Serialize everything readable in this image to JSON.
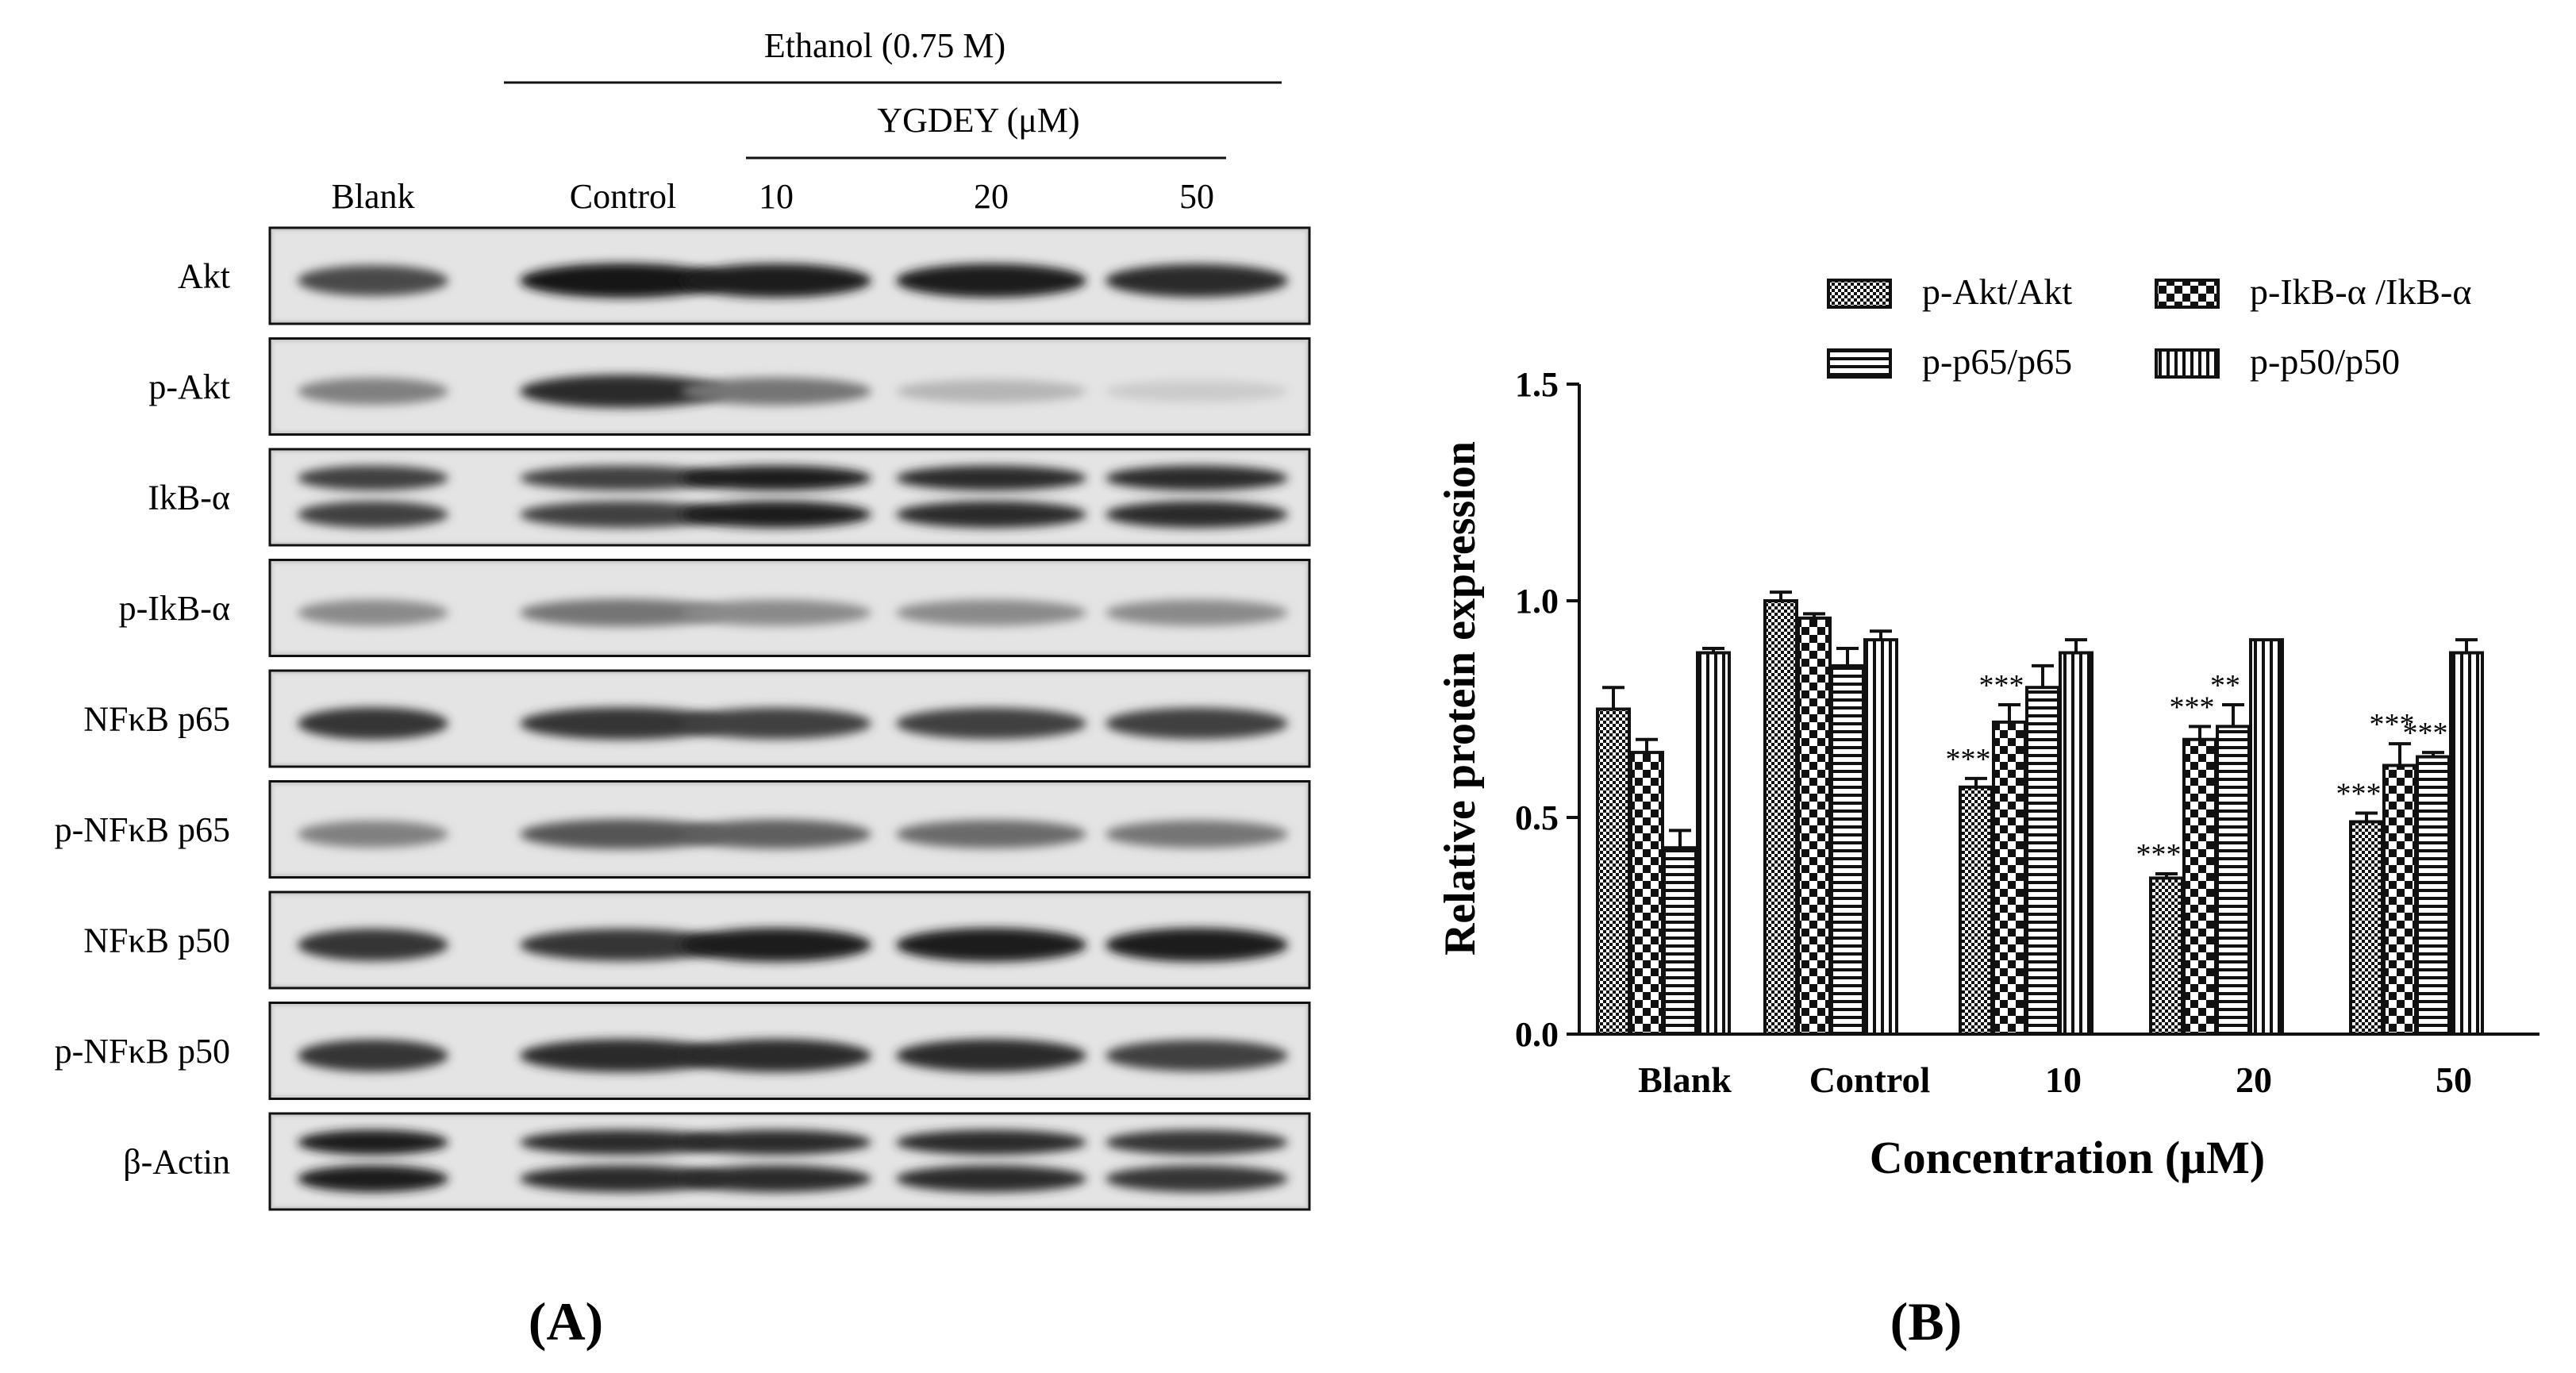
{
  "panel_a": {
    "panel_label": "(A)",
    "treatment_label": "Ethanol (0.75 M)",
    "peptide_label": "YGDEY (μM)",
    "lane_labels": [
      "Blank",
      "Control",
      "10",
      "20",
      "50"
    ],
    "rows": [
      {
        "label": "Akt",
        "intensity": [
          0.75,
          1.0,
          0.95,
          0.95,
          0.9
        ],
        "doublet": false
      },
      {
        "label": "p-Akt",
        "intensity": [
          0.5,
          0.9,
          0.55,
          0.25,
          0.15
        ],
        "doublet": false
      },
      {
        "label": "IkB-α",
        "intensity": [
          0.8,
          0.8,
          0.95,
          0.9,
          0.9
        ],
        "doublet": true
      },
      {
        "label": "p-IkB-α",
        "intensity": [
          0.45,
          0.55,
          0.45,
          0.45,
          0.45
        ],
        "doublet": false
      },
      {
        "label": "NFκB p65",
        "intensity": [
          0.85,
          0.85,
          0.8,
          0.8,
          0.8
        ],
        "doublet": false
      },
      {
        "label": "p-NFκB p65",
        "intensity": [
          0.5,
          0.7,
          0.65,
          0.6,
          0.55
        ],
        "doublet": false
      },
      {
        "label": "NFκB p50",
        "intensity": [
          0.85,
          0.85,
          0.95,
          0.95,
          0.95
        ],
        "doublet": false
      },
      {
        "label": "p-NFκB p50",
        "intensity": [
          0.85,
          0.9,
          0.9,
          0.9,
          0.8
        ],
        "doublet": false
      },
      {
        "label": "β-Actin",
        "intensity": [
          0.95,
          0.9,
          0.9,
          0.9,
          0.85
        ],
        "doublet": true
      }
    ]
  },
  "panel_b": {
    "panel_label": "(B)"
  },
  "chart_data": {
    "type": "bar",
    "xlabel": "Concentration (μM)",
    "ylabel": "Relative protein expression",
    "ylim": [
      0,
      1.5
    ],
    "yticks": [
      "0.0",
      "0.5",
      "1.0",
      "1.5"
    ],
    "categories": [
      "Blank",
      "Control",
      "10",
      "20",
      "50"
    ],
    "legend_position": "top",
    "series": [
      {
        "name": "p-Akt/Akt",
        "pattern": "checker",
        "values": [
          0.75,
          1.0,
          0.57,
          0.36,
          0.49
        ],
        "errors": [
          0.05,
          0.02,
          0.02,
          0.01,
          0.02
        ],
        "significance": [
          "",
          "",
          "***",
          "***",
          "***"
        ]
      },
      {
        "name": "p-IkB-α /IkB-α",
        "pattern": "bigchecker",
        "values": [
          0.65,
          0.96,
          0.72,
          0.68,
          0.62
        ],
        "errors": [
          0.03,
          0.01,
          0.04,
          0.03,
          0.05
        ],
        "significance": [
          "",
          "",
          "***",
          "***",
          "***"
        ]
      },
      {
        "name": "p-p65/p65",
        "pattern": "hlines",
        "values": [
          0.43,
          0.85,
          0.8,
          0.71,
          0.64
        ],
        "errors": [
          0.04,
          0.04,
          0.05,
          0.05,
          0.01
        ],
        "significance": [
          "",
          "",
          "",
          "**",
          "***"
        ]
      },
      {
        "name": "p-p50/p50",
        "pattern": "vlines",
        "values": [
          0.88,
          0.91,
          0.88,
          0.91,
          0.88
        ],
        "errors": [
          0.01,
          0.02,
          0.03,
          0.0,
          0.03
        ],
        "significance": [
          "",
          "",
          "",
          "",
          ""
        ]
      }
    ],
    "colors": {
      "ink": "#111111",
      "background": "#ffffff"
    }
  }
}
